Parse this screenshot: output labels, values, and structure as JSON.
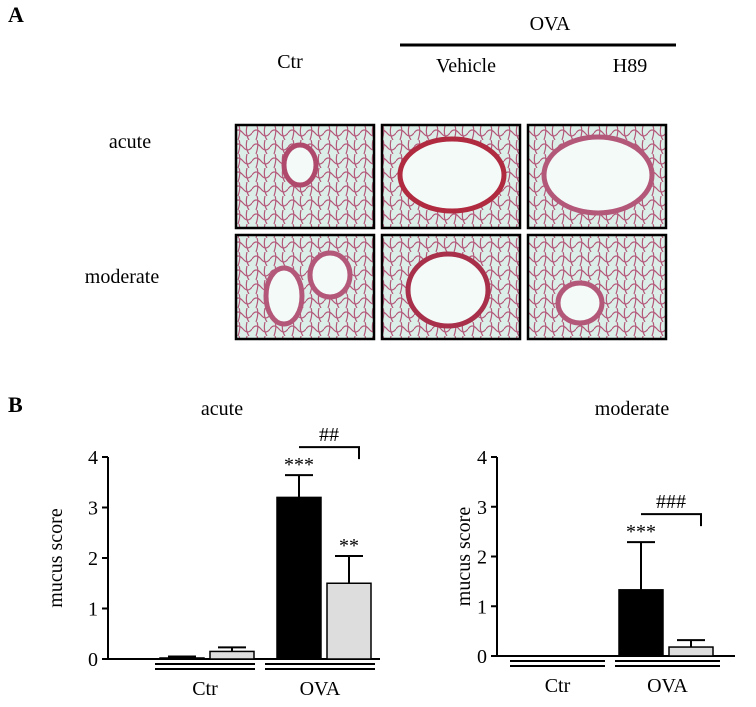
{
  "panel_a": {
    "label": "A",
    "group_label": "OVA",
    "columns": [
      "Ctr",
      "Vehicle",
      "H89"
    ],
    "rows": [
      "acute",
      "moderate"
    ]
  },
  "panel_b": {
    "label": "B"
  },
  "chart_data": [
    {
      "type": "bar",
      "title": "acute",
      "y_label": "mucus score",
      "categories": [
        "Ctr",
        "OVA"
      ],
      "ylim": [
        0,
        4
      ],
      "yticks": [
        0,
        1,
        2,
        3,
        4
      ],
      "series": [
        {
          "color": "#000000",
          "values": [
            0.02,
            3.2
          ],
          "errors": [
            0.03,
            0.44
          ],
          "marks": [
            null,
            "***"
          ]
        },
        {
          "color": "#dddddd",
          "values": [
            0.15,
            1.5
          ],
          "errors": [
            0.08,
            0.54
          ],
          "marks": [
            null,
            "**"
          ]
        }
      ],
      "comparison_label": "##"
    },
    {
      "type": "bar",
      "title": "moderate",
      "y_label": "mucus score",
      "categories": [
        "Ctr",
        "OVA"
      ],
      "ylim": [
        0,
        4
      ],
      "yticks": [
        0,
        1,
        2,
        3,
        4
      ],
      "series": [
        {
          "color": "#000000",
          "values": [
            0,
            1.33
          ],
          "errors": [
            0,
            0.96
          ],
          "marks": [
            null,
            "***"
          ]
        },
        {
          "color": "#dddddd",
          "values": [
            0,
            0.18
          ],
          "errors": [
            0,
            0.14
          ],
          "marks": [
            null,
            null
          ]
        }
      ],
      "comparison_label": "###"
    }
  ]
}
